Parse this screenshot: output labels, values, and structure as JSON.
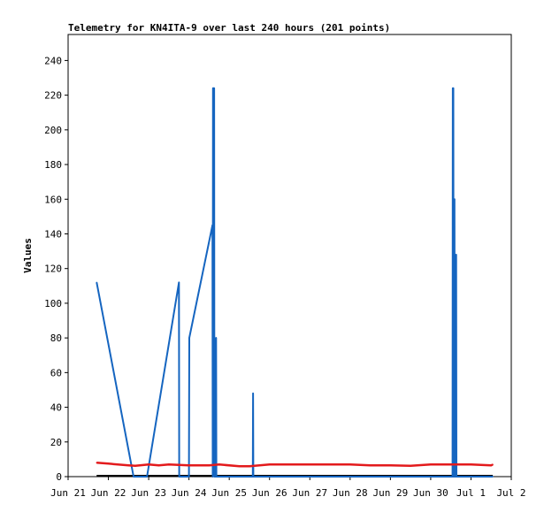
{
  "chart_data": {
    "type": "line",
    "title": "Telemetry for KN4ITA-9 over last 240 hours (201 points)",
    "ylabel": "Values",
    "xlabel": "",
    "ylim": [
      0,
      255
    ],
    "xlim": [
      "Jun 21",
      "Jul 2"
    ],
    "grid": false,
    "y_ticks": [
      0,
      20,
      40,
      60,
      80,
      100,
      120,
      140,
      160,
      180,
      200,
      220,
      240
    ],
    "x_ticks": [
      "Jun 21",
      "Jun 22",
      "Jun 23",
      "Jun 24",
      "Jun 25",
      "Jun 26",
      "Jun 27",
      "Jun 28",
      "Jun 29",
      "Jun 30",
      "Jul 1",
      "Jul 2"
    ],
    "series": [
      {
        "color": "#1565c0",
        "points": [
          [
            "Jun 21 17:00",
            112
          ],
          [
            "Jun 22 15:00",
            0
          ],
          [
            "Jun 22 23:00",
            0
          ],
          [
            "Jun 23 18:00",
            112
          ],
          [
            "Jun 23 18:10",
            0
          ],
          [
            "Jun 24 00:00",
            0
          ],
          [
            "Jun 24 00:10",
            80
          ],
          [
            "Jun 24 14:00",
            145
          ],
          [
            "Jun 24 14:10",
            0
          ],
          [
            "Jun 24 14:20",
            224
          ],
          [
            "Jun 24 15:00",
            224
          ],
          [
            "Jun 24 15:10",
            0
          ],
          [
            "Jun 24 16:00",
            0
          ],
          [
            "Jun 24 16:10",
            80
          ],
          [
            "Jun 24 16:20",
            0
          ],
          [
            "Jun 25 14:00",
            0
          ],
          [
            "Jun 25 14:10",
            48
          ],
          [
            "Jun 25 14:20",
            0
          ],
          [
            "Jun 30 13:00",
            0
          ],
          [
            "Jun 30 13:10",
            224
          ],
          [
            "Jun 30 13:30",
            224
          ],
          [
            "Jun 30 13:40",
            0
          ],
          [
            "Jun 30 14:00",
            0
          ],
          [
            "Jun 30 14:10",
            160
          ],
          [
            "Jun 30 14:20",
            0
          ],
          [
            "Jun 30 15:00",
            0
          ],
          [
            "Jun 30 15:10",
            128
          ],
          [
            "Jun 30 15:20",
            0
          ],
          [
            "Jul 1 13:00",
            0
          ]
        ]
      },
      {
        "color": "#e31a1c",
        "points": [
          [
            "Jun 21 17:00",
            8
          ],
          [
            "Jun 22 00:00",
            7.5
          ],
          [
            "Jun 22 12:00",
            6.5
          ],
          [
            "Jun 22 16:00",
            6.2
          ],
          [
            "Jun 23 00:00",
            7
          ],
          [
            "Jun 23 06:00",
            6.5
          ],
          [
            "Jun 23 12:00",
            7
          ],
          [
            "Jun 24 00:00",
            6.5
          ],
          [
            "Jun 24 12:00",
            6.5
          ],
          [
            "Jun 24 18:00",
            7
          ],
          [
            "Jun 25 06:00",
            6
          ],
          [
            "Jun 25 12:00",
            6
          ],
          [
            "Jun 26 00:00",
            7
          ],
          [
            "Jun 27 00:00",
            7
          ],
          [
            "Jun 28 00:00",
            7
          ],
          [
            "Jun 28 12:00",
            6.5
          ],
          [
            "Jun 29 00:00",
            6.5
          ],
          [
            "Jun 29 12:00",
            6.2
          ],
          [
            "Jun 30 00:00",
            7
          ],
          [
            "Jun 30 12:00",
            7
          ],
          [
            "Jul 1 00:00",
            7
          ],
          [
            "Jul 1 12:00",
            6.5
          ],
          [
            "Jul 1 13:00",
            7
          ]
        ]
      }
    ]
  }
}
